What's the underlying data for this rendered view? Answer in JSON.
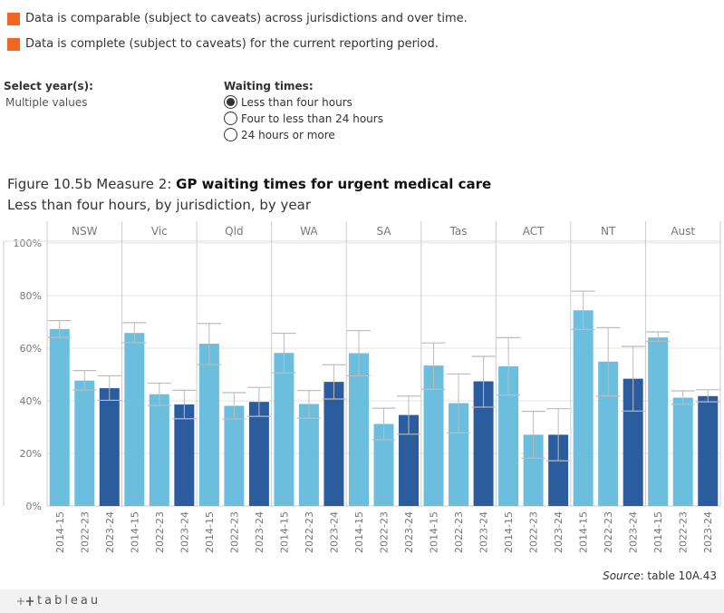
{
  "legend": [
    {
      "text": "Data is comparable (subject to caveats) across jurisdictions and over time.",
      "color": "#f26522"
    },
    {
      "text": "Data is complete (subject to caveats) for the current reporting period.",
      "color": "#f26522"
    }
  ],
  "year_filter": {
    "title": "Select year(s):",
    "value": "Multiple values"
  },
  "waiting_filter": {
    "title": "Waiting times:",
    "options": [
      "Less than four hours",
      "Four to less than 24 hours",
      "24 hours or more"
    ],
    "selected": "Less than four hours"
  },
  "figure": {
    "prefix": "Figure 10.5b Measure 2: ",
    "title_bold": "GP waiting times for urgent medical care",
    "subtitle": "Less than four hours, by jurisdiction, by year"
  },
  "chart_data": {
    "type": "bar",
    "panels": [
      "NSW",
      "Vic",
      "Qld",
      "WA",
      "SA",
      "Tas",
      "ACT",
      "NT",
      "Aust"
    ],
    "categories": [
      "2014-15",
      "2022-23",
      "2023-24"
    ],
    "series_colors": {
      "2014-15": "#6bbedd",
      "2022-23": "#6bbedd",
      "2023-24": "#2b5c9e"
    },
    "values": {
      "NSW": [
        67.3,
        47.7,
        44.8
      ],
      "Vic": [
        65.8,
        42.5,
        38.6
      ],
      "Qld": [
        61.7,
        38.1,
        39.6
      ],
      "WA": [
        58.2,
        38.8,
        47.2
      ],
      "SA": [
        58.1,
        31.2,
        34.6
      ],
      "Tas": [
        53.4,
        39.1,
        47.4
      ],
      "ACT": [
        53.1,
        27.1,
        27.1
      ],
      "NT": [
        74.4,
        54.9,
        48.4
      ],
      "Aust": [
        64.1,
        41.2,
        41.8
      ]
    },
    "ci_lower": {
      "NSW": [
        64.1,
        44.1,
        40.2
      ],
      "Vic": [
        62.1,
        38.2,
        33.2
      ],
      "Qld": [
        53.8,
        33.1,
        34.1
      ],
      "WA": [
        50.6,
        33.4,
        40.7
      ],
      "SA": [
        49.5,
        25.2,
        27.3
      ],
      "Tas": [
        44.4,
        27.8,
        37.6
      ],
      "ACT": [
        42.2,
        18.2,
        17.2
      ],
      "NT": [
        67.1,
        41.8,
        36.1
      ],
      "Aust": [
        62.6,
        38.7,
        39.6
      ]
    },
    "ci_upper": {
      "NSW": [
        70.5,
        51.5,
        49.5
      ],
      "Vic": [
        69.7,
        46.7,
        44.0
      ],
      "Qld": [
        69.4,
        43.1,
        45.1
      ],
      "WA": [
        65.7,
        43.9,
        53.7
      ],
      "SA": [
        66.7,
        37.2,
        41.8
      ],
      "Tas": [
        62.0,
        50.2,
        56.9
      ],
      "ACT": [
        64.0,
        36.0,
        37.0
      ],
      "NT": [
        81.7,
        67.8,
        60.7
      ],
      "Aust": [
        66.2,
        43.8,
        44.2
      ]
    },
    "yticks": [
      "100%",
      "80%",
      "60%",
      "40%",
      "20%",
      "0%"
    ],
    "ylim": [
      0,
      100
    ],
    "error_bars": true,
    "grid": true
  },
  "source": {
    "label": "Source",
    "text": ": table 10A.43"
  },
  "footer": {
    "brand": "tableau"
  }
}
